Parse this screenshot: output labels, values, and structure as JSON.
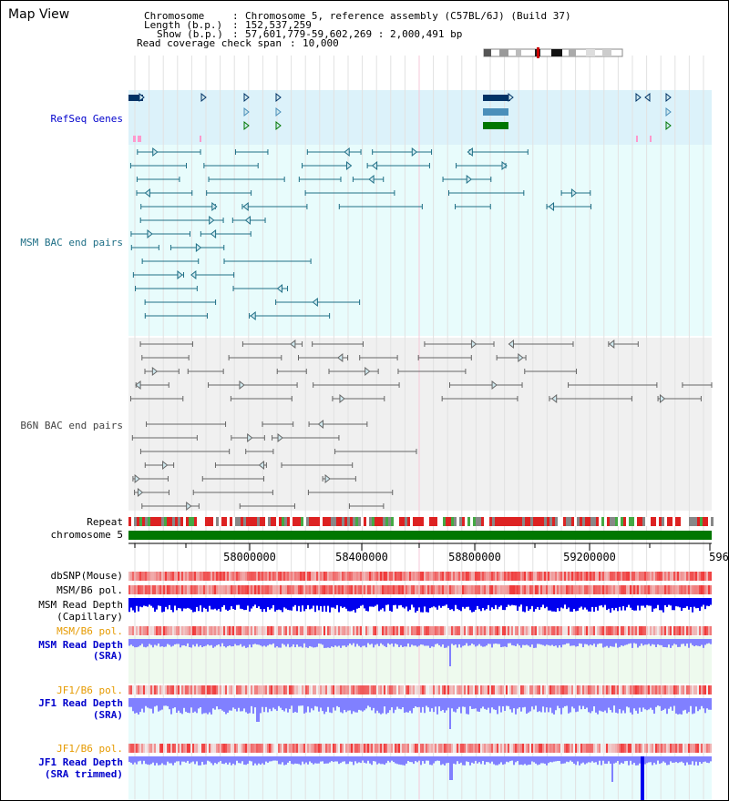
{
  "title": "Map View",
  "info": {
    "chromosome_key": "Chromosome",
    "chromosome_value": "Chromosome 5, reference assembly (C57BL/6J) (Build 37)",
    "length_key": "Length (b.p.)",
    "length_value": "152,537,259",
    "show_key": "Show (b.p.)",
    "show_value": "57,601,779-59,602,269 : 2,000,491 bp",
    "coverage_key": "Read coverage check span",
    "coverage_value": "10,000"
  },
  "tracks": {
    "refseq": "RefSeq Genes",
    "msm_bac": "MSM BAC end pairs",
    "b6n_bac": "B6N BAC end pairs",
    "repeat": "Repeat",
    "chromosome": "chromosome 5",
    "dbsnp": "dbSNP(Mouse)",
    "msm_b6_pol_1": "MSM/B6 pol.",
    "msm_depth_cap_1": "MSM Read Depth",
    "msm_depth_cap_2": "(Capillary)",
    "msm_b6_pol_2": "MSM/B6 pol.",
    "msm_depth_sra_1": "MSM Read Depth",
    "msm_depth_sra_2": "(SRA)",
    "jf1_b6_pol_1": "JF1/B6 pol.",
    "jf1_depth_sra_1": "JF1 Read Depth",
    "jf1_depth_sra_2": "(SRA)",
    "jf1_b6_pol_2": "JF1/B6 pol.",
    "jf1_depth_trim_1": "JF1 Read Depth",
    "jf1_depth_trim_2": "(SRA trimmed)"
  },
  "axis": {
    "ticks": [
      "58000000",
      "58400000",
      "58800000",
      "59200000",
      "596"
    ]
  },
  "colors": {
    "refseq_bg": "#dcf2fa",
    "msm_bg": "#e8fcfc",
    "b6n_bg": "#f0f0f0",
    "msm_feature": "#1f6f86",
    "b6n_feature": "#666666",
    "refseq_label": "#0000cc",
    "msm_label": "#1f6f86",
    "pol_label_orange": "#e69a00",
    "depth_blue_dark": "#0000ee",
    "depth_blue_light": "#8080ff",
    "snp_red": "#ee3333",
    "chromosome_green": "#007700"
  }
}
